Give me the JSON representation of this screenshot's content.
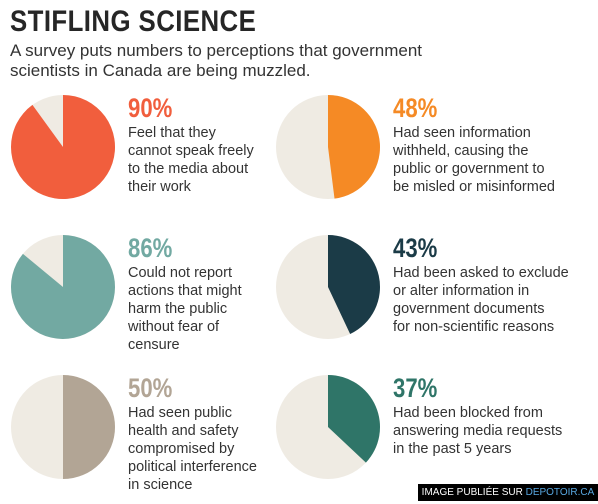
{
  "header": {
    "title": "STIFLING SCIENCE",
    "subtitle": "A survey puts numbers to perceptions that government scientists in Canada are being muzzled."
  },
  "colors": {
    "background_slice": "#efebe3",
    "red": "#f15e3d",
    "orange": "#f58a25",
    "teal": "#72a9a2",
    "navy": "#1b3b47",
    "taupe": "#b2a595",
    "green": "#2f7568"
  },
  "chart_data": [
    {
      "type": "pie",
      "value": 90,
      "label": "90%",
      "color": "#f15e3d",
      "description_lines": [
        "Feel that they",
        "cannot speak freely",
        "to the media about",
        "their work"
      ]
    },
    {
      "type": "pie",
      "value": 48,
      "label": "48%",
      "color": "#f58a25",
      "description_lines": [
        "Had seen information",
        "withheld, causing the",
        "public or government to",
        "be misled or misinformed"
      ]
    },
    {
      "type": "pie",
      "value": 86,
      "label": "86%",
      "color": "#72a9a2",
      "description_lines": [
        "Could not report",
        "actions that might",
        "harm the public",
        "without fear of",
        "censure"
      ]
    },
    {
      "type": "pie",
      "value": 43,
      "label": "43%",
      "color": "#1b3b47",
      "description_lines": [
        "Had been asked to exclude",
        "or alter information in",
        "government documents",
        "for non-scientific reasons"
      ]
    },
    {
      "type": "pie",
      "value": 50,
      "label": "50%",
      "color": "#b2a595",
      "description_lines": [
        "Had seen public",
        "health and safety",
        "compromised by",
        "political interference",
        "in science"
      ]
    },
    {
      "type": "pie",
      "value": 37,
      "label": "37%",
      "color": "#2f7568",
      "description_lines": [
        "Had been blocked from",
        "answering media requests",
        "in the past 5 years"
      ]
    }
  ],
  "footer": {
    "credit_prefix": "IMAGE PUBLIÉE SUR ",
    "credit_site": "DEPOTOIR.CA"
  }
}
